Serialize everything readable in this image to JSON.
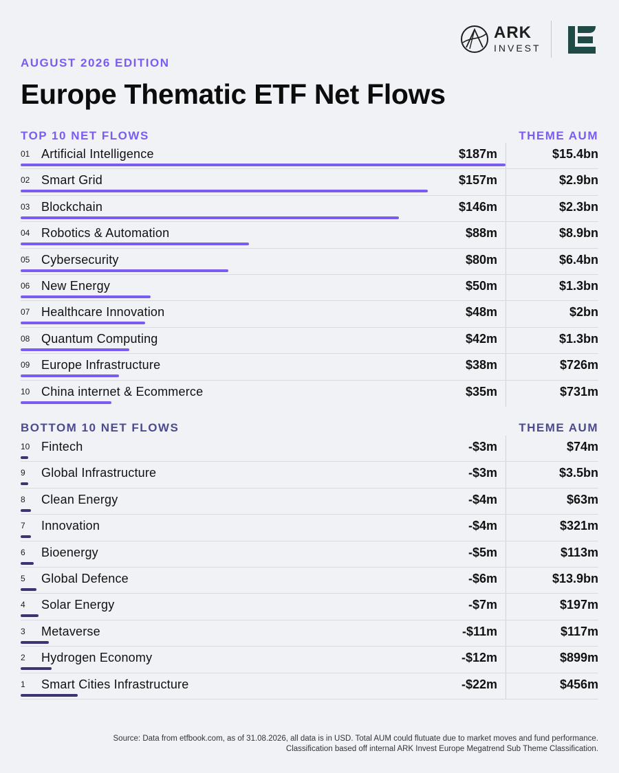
{
  "header": {
    "edition": "AUGUST 2026 EDITION",
    "title": "Europe Thematic ETF Net Flows"
  },
  "logos": {
    "ark_name": "ARK",
    "ark_sub": "INVEST",
    "brand_color": "#1f4a45"
  },
  "colors": {
    "accent_purple": "#7b5cf0",
    "bar_top": "#7b5cf0",
    "bar_bottom": "#3a3570",
    "bottom_header": "#4b4b8e"
  },
  "chart_data": [
    {
      "type": "bar",
      "orientation": "horizontal",
      "section_label": "TOP 10 NET FLOWS",
      "aum_label": "THEME AUM",
      "unit": "USD millions",
      "max_scale": 187,
      "rows": [
        {
          "rank": "01",
          "name": "Artificial Intelligence",
          "value": 187,
          "flow": "$187m",
          "aum": "$15.4bn"
        },
        {
          "rank": "02",
          "name": "Smart Grid",
          "value": 157,
          "flow": "$157m",
          "aum": "$2.9bn"
        },
        {
          "rank": "03",
          "name": "Blockchain",
          "value": 146,
          "flow": "$146m",
          "aum": "$2.3bn"
        },
        {
          "rank": "04",
          "name": "Robotics & Automation",
          "value": 88,
          "flow": "$88m",
          "aum": "$8.9bn"
        },
        {
          "rank": "05",
          "name": "Cybersecurity",
          "value": 80,
          "flow": "$80m",
          "aum": "$6.4bn"
        },
        {
          "rank": "06",
          "name": "New Energy",
          "value": 50,
          "flow": "$50m",
          "aum": "$1.3bn"
        },
        {
          "rank": "07",
          "name": "Healthcare Innovation",
          "value": 48,
          "flow": "$48m",
          "aum": "$2bn"
        },
        {
          "rank": "08",
          "name": "Quantum Computing",
          "value": 42,
          "flow": "$42m",
          "aum": "$1.3bn"
        },
        {
          "rank": "09",
          "name": "Europe Infrastructure",
          "value": 38,
          "flow": "$38m",
          "aum": "$726m"
        },
        {
          "rank": "10",
          "name": "China internet & Ecommerce",
          "value": 35,
          "flow": "$35m",
          "aum": "$731m"
        }
      ]
    },
    {
      "type": "bar",
      "orientation": "horizontal",
      "section_label": "BOTTOM 10 NET FLOWS",
      "aum_label": "THEME AUM",
      "unit": "USD millions",
      "max_scale": 187,
      "rows": [
        {
          "rank": "10",
          "name": "Fintech",
          "value": -3,
          "flow": "-$3m",
          "aum": "$74m"
        },
        {
          "rank": "9",
          "name": "Global Infrastructure",
          "value": -3,
          "flow": "-$3m",
          "aum": "$3.5bn"
        },
        {
          "rank": "8",
          "name": "Clean Energy",
          "value": -4,
          "flow": "-$4m",
          "aum": "$63m"
        },
        {
          "rank": "7",
          "name": "Innovation",
          "value": -4,
          "flow": "-$4m",
          "aum": "$321m"
        },
        {
          "rank": "6",
          "name": "Bioenergy",
          "value": -5,
          "flow": "-$5m",
          "aum": "$113m"
        },
        {
          "rank": "5",
          "name": "Global Defence",
          "value": -6,
          "flow": "-$6m",
          "aum": "$13.9bn"
        },
        {
          "rank": "4",
          "name": "Solar Energy",
          "value": -7,
          "flow": "-$7m",
          "aum": "$197m"
        },
        {
          "rank": "3",
          "name": "Metaverse",
          "value": -11,
          "flow": "-$11m",
          "aum": "$117m"
        },
        {
          "rank": "2",
          "name": "Hydrogen Economy",
          "value": -12,
          "flow": "-$12m",
          "aum": "$899m"
        },
        {
          "rank": "1",
          "name": "Smart Cities Infrastructure",
          "value": -22,
          "flow": "-$22m",
          "aum": "$456m"
        }
      ]
    }
  ],
  "footer": {
    "line1": "Source: Data from etfbook.com, as of 31.08.2026, all data is in USD. Total AUM could flutuate due to market moves and fund performance.",
    "line2": "Classification based off internal ARK Invest Europe Megatrend Sub Theme Classification."
  }
}
